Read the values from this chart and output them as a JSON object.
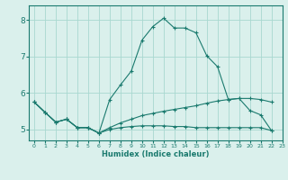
{
  "xlabel": "Humidex (Indice chaleur)",
  "background_color": "#daf0ec",
  "grid_color": "#a8d8d0",
  "line_color": "#1a7a6e",
  "xlim": [
    -0.5,
    23
  ],
  "ylim": [
    4.7,
    8.4
  ],
  "yticks": [
    5,
    6,
    7,
    8
  ],
  "xticks": [
    0,
    1,
    2,
    3,
    4,
    5,
    6,
    7,
    8,
    9,
    10,
    11,
    12,
    13,
    14,
    15,
    16,
    17,
    18,
    19,
    20,
    21,
    22,
    23
  ],
  "line1_x": [
    0,
    1,
    2,
    3,
    4,
    5,
    6,
    7,
    8,
    9,
    10,
    11,
    12,
    13,
    14,
    15,
    16,
    17,
    18,
    19,
    20,
    21,
    22
  ],
  "line1_y": [
    5.75,
    5.47,
    5.2,
    5.28,
    5.05,
    5.05,
    4.9,
    5.82,
    6.22,
    6.6,
    7.45,
    7.82,
    8.05,
    7.78,
    7.78,
    7.65,
    7.02,
    6.72,
    5.82,
    5.85,
    5.52,
    5.4,
    4.97
  ],
  "line2_x": [
    0,
    1,
    2,
    3,
    4,
    5,
    6,
    7,
    8,
    9,
    10,
    11,
    12,
    13,
    14,
    15,
    16,
    17,
    18,
    19,
    20,
    21,
    22
  ],
  "line2_y": [
    5.75,
    5.47,
    5.2,
    5.28,
    5.05,
    5.05,
    4.9,
    5.05,
    5.18,
    5.28,
    5.38,
    5.44,
    5.5,
    5.55,
    5.6,
    5.65,
    5.72,
    5.78,
    5.82,
    5.85,
    5.85,
    5.82,
    5.75
  ],
  "line3_x": [
    0,
    1,
    2,
    3,
    4,
    5,
    6,
    7,
    8,
    9,
    10,
    11,
    12,
    13,
    14,
    15,
    16,
    17,
    18,
    19,
    20,
    21,
    22
  ],
  "line3_y": [
    5.75,
    5.47,
    5.2,
    5.28,
    5.05,
    5.05,
    4.9,
    5.0,
    5.05,
    5.08,
    5.1,
    5.1,
    5.1,
    5.08,
    5.08,
    5.05,
    5.05,
    5.05,
    5.05,
    5.05,
    5.05,
    5.05,
    4.97
  ]
}
